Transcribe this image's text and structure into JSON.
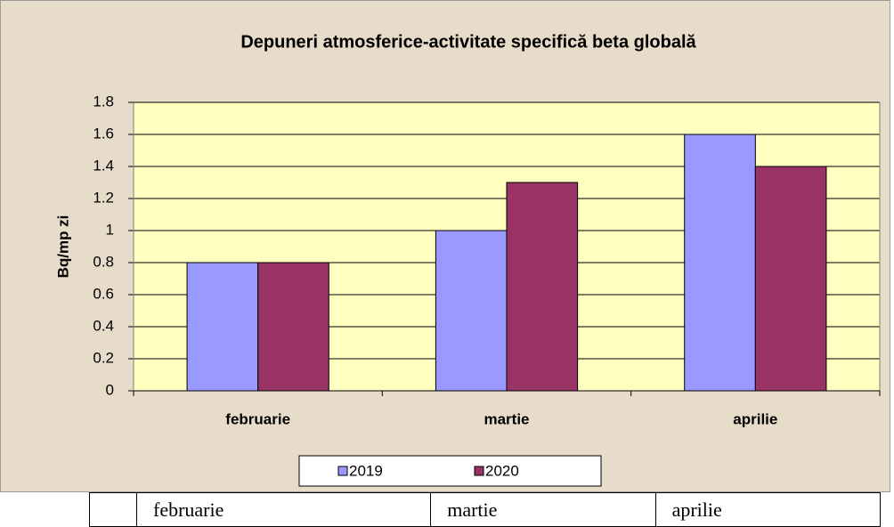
{
  "chart_data": {
    "type": "bar",
    "title": "Depuneri atmosferice-activitate specifică beta globală",
    "ylabel": "Bq/mp zi",
    "categories": [
      "februarie",
      "martie",
      "aprilie"
    ],
    "series": [
      {
        "name": "2019",
        "color": "#9999ff",
        "values": [
          0.8,
          1.0,
          1.6
        ]
      },
      {
        "name": "2020",
        "color": "#993366",
        "values": [
          0.8,
          1.3,
          1.4
        ]
      }
    ],
    "ylim": [
      0,
      1.8
    ],
    "yticks": [
      0,
      0.2,
      0.4,
      0.6,
      0.8,
      1,
      1.2,
      1.4,
      1.6,
      1.8
    ],
    "grid": true,
    "legend": "bottom"
  },
  "table": {
    "rows": [
      [
        "februarie",
        "martie",
        "aprilie"
      ]
    ]
  }
}
